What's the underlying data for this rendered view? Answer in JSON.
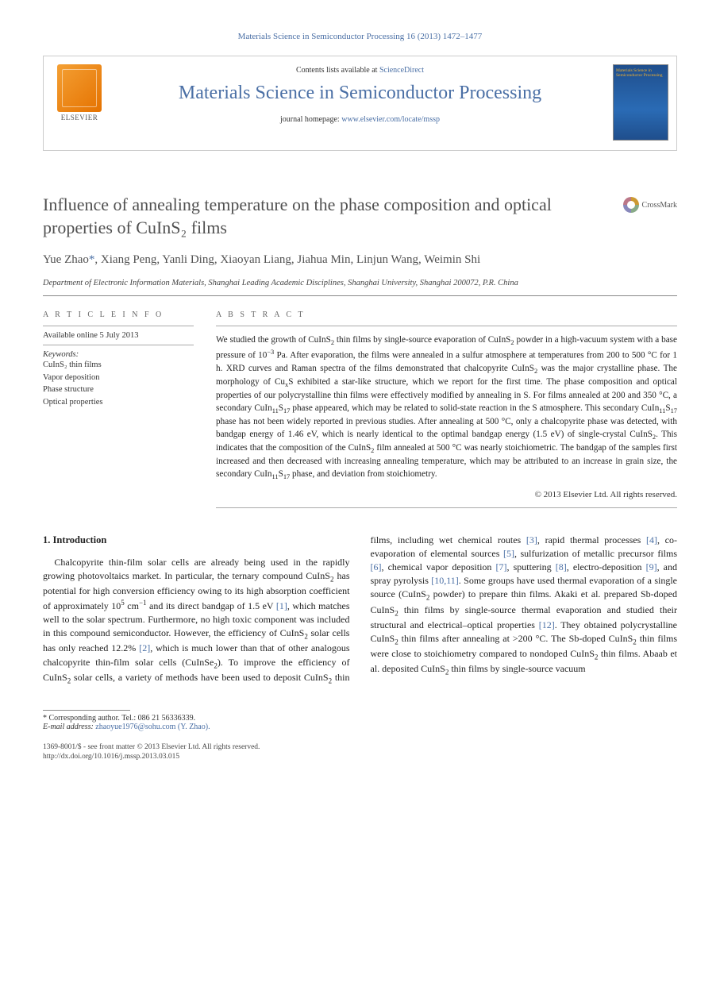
{
  "header": {
    "citation": "Materials Science in Semiconductor Processing 16 (2013) 1472–1477"
  },
  "journalBox": {
    "publisher": "ELSEVIER",
    "contentsPrefix": "Contents lists available at",
    "contentsLink": "ScienceDirect",
    "journalName": "Materials Science in Semiconductor Processing",
    "homepagePrefix": "journal homepage:",
    "homepageUrl": "www.elsevier.com/locate/mssp",
    "coverTitle": "Materials Science in Semiconductor Processing"
  },
  "article": {
    "title_html": "Influence of annealing temperature on the phase composition and optical properties of CuInS₂ films",
    "crossmarkLabel": "CrossMark",
    "authors_html": "Yue Zhao<span class='corr'>*</span>, Xiang Peng, Yanli Ding, Xiaoyan Liang, Jiahua Min, Linjun Wang, Weimin Shi",
    "affiliation": "Department of Electronic Information Materials, Shanghai Leading Academic Disciplines, Shanghai University, Shanghai 200072, P.R. China"
  },
  "info": {
    "articleInfoHead": "A R T I C L E   I N F O",
    "availableDate": "Available online 5 July 2013",
    "keywordsHead": "Keywords:",
    "keywords": [
      "CuInS₂ thin films",
      "Vapor deposition",
      "Phase structure",
      "Optical properties"
    ]
  },
  "abstract": {
    "head": "A B S T R A C T",
    "text_html": "We studied the growth of CuInS<sub>2</sub> thin films by single-source evaporation of CuInS<sub>2</sub> powder in a high-vacuum system with a base pressure of 10<sup>−3</sup> Pa. After evaporation, the films were annealed in a sulfur atmosphere at temperatures from 200 to 500 °C for 1 h. XRD curves and Raman spectra of the films demonstrated that chalcopyrite CuInS<sub>2</sub> was the major crystalline phase. The morphology of Cu<sub>x</sub>S exhibited a star-like structure, which we report for the first time. The phase composition and optical properties of our polycrystalline thin films were effectively modified by annealing in S. For films annealed at 200 and 350 °C, a secondary CuIn<sub>11</sub>S<sub>17</sub> phase appeared, which may be related to solid-state reaction in the S atmosphere. This secondary CuIn<sub>11</sub>S<sub>17</sub> phase has not been widely reported in previous studies. After annealing at 500 °C, only a chalcopyrite phase was detected, with bandgap energy of 1.46 eV, which is nearly identical to the optimal bandgap energy (1.5 eV) of single-crystal CuInS<sub>2</sub>. This indicates that the composition of the CuInS<sub>2</sub> film annealed at 500 °C was nearly stoichiometric. The bandgap of the samples first increased and then decreased with increasing annealing temperature, which may be attributed to an increase in grain size, the secondary CuIn<sub>11</sub>S<sub>17</sub> phase, and deviation from stoichiometry.",
    "copyright": "© 2013 Elsevier Ltd. All rights reserved."
  },
  "body": {
    "heading": "1. Introduction",
    "para_html": "Chalcopyrite thin-film solar cells are already being used in the rapidly growing photovoltaics market. In particular, the ternary compound CuInS<sub>2</sub> has potential for high conversion efficiency owing to its high absorption coefficient of approximately 10<sup>5</sup> cm<sup>−1</sup> and its direct bandgap of 1.5 eV <span class='ref-link'>[1]</span>, which matches well to the solar spectrum. Furthermore, no high toxic component was included in this compound semiconductor. However, the efficiency of CuInS<sub>2</sub> solar cells has only reached 12.2% <span class='ref-link'>[2]</span>, which is much lower than that of other analogous chalcopyrite thin-film solar cells (CuInSe<sub>2</sub>). To improve the efficiency of CuInS<sub>2</sub> solar cells, a variety of methods have been used to deposit CuInS<sub>2</sub> thin films, including wet chemical routes <span class='ref-link'>[3]</span>, rapid thermal processes <span class='ref-link'>[4]</span>, co-evaporation of elemental sources <span class='ref-link'>[5]</span>, sulfurization of metallic precursor films <span class='ref-link'>[6]</span>, chemical vapor deposition <span class='ref-link'>[7]</span>, sputtering <span class='ref-link'>[8]</span>, electro-deposition <span class='ref-link'>[9]</span>, and spray pyrolysis <span class='ref-link'>[10,11]</span>. Some groups have used thermal evaporation of a single source (CuInS<sub>2</sub> powder) to prepare thin films. Akaki et al. prepared Sb-doped CuInS<sub>2</sub> thin films by single-source thermal evaporation and studied their structural and electrical–optical properties <span class='ref-link'>[12]</span>. They obtained polycrystalline CuInS<sub>2</sub> thin films after annealing at &gt;200 °C. The Sb-doped CuInS<sub>2</sub> thin films were close to stoichiometry compared to nondoped CuInS<sub>2</sub> thin films. Abaab et al. deposited CuInS<sub>2</sub> thin films by single-source vacuum"
  },
  "footnotes": {
    "corresponding": "* Corresponding author. Tel.: 086 21 56336339.",
    "emailLabel": "E-mail address:",
    "email": "zhaoyue1976@sohu.com (Y. Zhao)."
  },
  "footer": {
    "line1": "1369-8001/$ - see front matter © 2013 Elsevier Ltd. All rights reserved.",
    "doi": "http://dx.doi.org/10.1016/j.mssp.2013.03.015"
  },
  "colors": {
    "link": "#4a6fa5",
    "text": "#222222",
    "headingGray": "#505050",
    "ruleGray": "#888888"
  },
  "typography": {
    "body_pt": 12,
    "abstract_pt": 11,
    "title_pt": 22,
    "journal_pt": 24,
    "authors_pt": 15,
    "affiliation_pt": 10.5
  }
}
